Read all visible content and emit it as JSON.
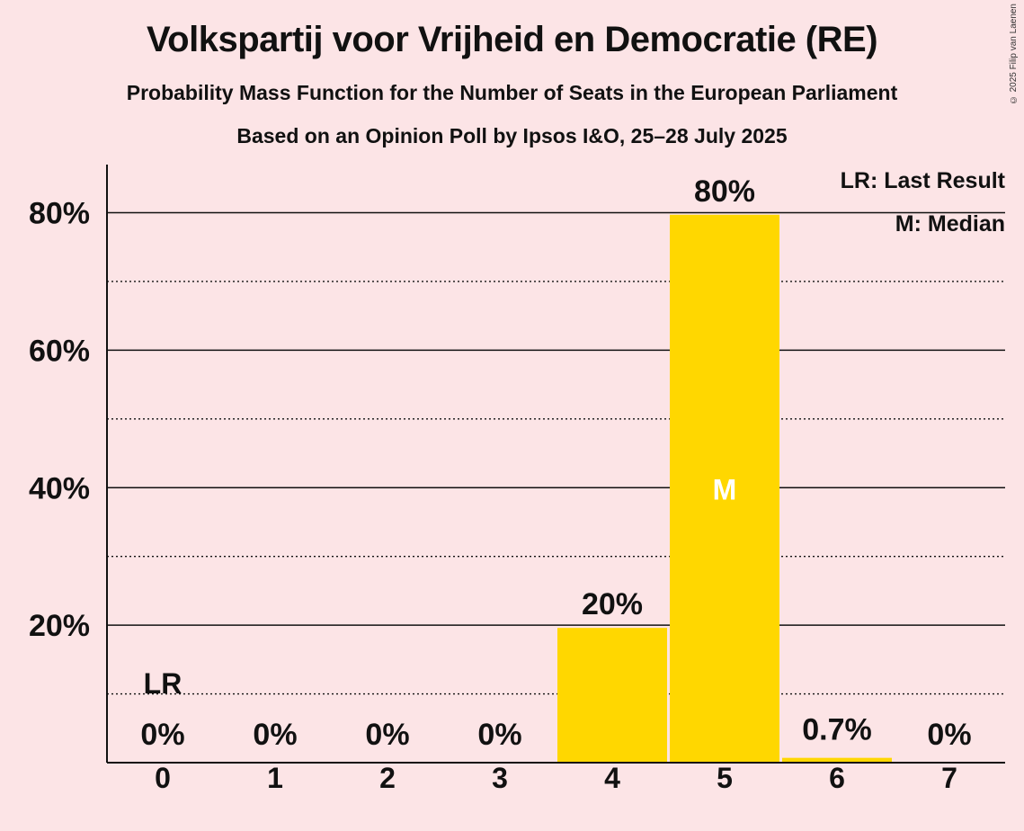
{
  "title": "Volkspartij voor Vrijheid en Democratie (RE)",
  "subtitle": "Probability Mass Function for the Number of Seats in the European Parliament",
  "subtitle2": "Based on an Opinion Poll by Ipsos I&O, 25–28 July 2025",
  "copyright": "© 2025 Filip van Laenen",
  "legend": {
    "last_result": "LR: Last Result",
    "median": "M: Median"
  },
  "colors": {
    "background": "#fce4e6",
    "bar": "#ffd700",
    "axis": "#111111"
  },
  "chart_data": {
    "type": "bar",
    "categories": [
      "0",
      "1",
      "2",
      "3",
      "4",
      "5",
      "6",
      "7"
    ],
    "values": [
      0,
      0,
      0,
      0,
      19.6,
      79.7,
      0.7,
      0
    ],
    "data_labels": [
      "0%",
      "0%",
      "0%",
      "0%",
      "20%",
      "80%",
      "0.7%",
      "0%"
    ],
    "ylim": [
      0,
      87
    ],
    "yticks": [
      {
        "value": 20,
        "label": "20%"
      },
      {
        "value": 40,
        "label": "40%"
      },
      {
        "value": 60,
        "label": "60%"
      },
      {
        "value": 80,
        "label": "80%"
      }
    ],
    "minor_gridlines": [
      10,
      30,
      50,
      70
    ],
    "last_result_index": 0,
    "last_result_label": "LR",
    "median_index": 5,
    "median_label": "M",
    "grid": true,
    "legend_position": "top-right"
  }
}
